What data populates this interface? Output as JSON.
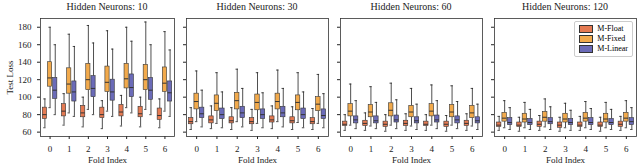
{
  "chart_data": [
    {
      "type": "box",
      "title": "Hidden Neurons: 10",
      "xlabel": "Fold Index",
      "ylabel": "Test Loss",
      "categories": [
        "0",
        "1",
        "2",
        "3",
        "4",
        "5",
        "6"
      ],
      "ylim": [
        55,
        190
      ],
      "yticks": [
        60,
        80,
        100,
        120,
        140,
        160,
        180
      ],
      "grid": false,
      "series": [
        {
          "name": "M-Float",
          "color": "#e57a52",
          "values": [
            {
              "min": 65,
              "q1": 75,
              "median": 80,
              "q3": 88,
              "max": 98
            },
            {
              "min": 68,
              "q1": 78,
              "median": 84,
              "q3": 92,
              "max": 104
            },
            {
              "min": 66,
              "q1": 77,
              "median": 82,
              "q3": 90,
              "max": 100
            },
            {
              "min": 64,
              "q1": 76,
              "median": 80,
              "q3": 88,
              "max": 96
            },
            {
              "min": 67,
              "q1": 78,
              "median": 83,
              "q3": 91,
              "max": 102
            },
            {
              "min": 66,
              "q1": 77,
              "median": 81,
              "q3": 89,
              "max": 100
            },
            {
              "min": 65,
              "q1": 74,
              "median": 79,
              "q3": 87,
              "max": 98
            }
          ]
        },
        {
          "name": "M-Fixed",
          "color": "#f2aa4c",
          "values": [
            {
              "min": 88,
              "q1": 112,
              "median": 122,
              "q3": 140,
              "max": 180
            },
            {
              "min": 82,
              "q1": 104,
              "median": 115,
              "q3": 133,
              "max": 172
            },
            {
              "min": 86,
              "q1": 108,
              "median": 120,
              "q3": 138,
              "max": 182
            },
            {
              "min": 84,
              "q1": 106,
              "median": 117,
              "q3": 135,
              "max": 176
            },
            {
              "min": 88,
              "q1": 110,
              "median": 121,
              "q3": 138,
              "max": 180
            },
            {
              "min": 86,
              "q1": 108,
              "median": 120,
              "q3": 137,
              "max": 186
            },
            {
              "min": 84,
              "q1": 106,
              "median": 116,
              "q3": 134,
              "max": 175
            }
          ]
        },
        {
          "name": "M-Linear",
          "color": "#6b6bb8",
          "values": [
            {
              "min": 80,
              "q1": 98,
              "median": 108,
              "q3": 122,
              "max": 160
            },
            {
              "min": 78,
              "q1": 95,
              "median": 106,
              "q3": 118,
              "max": 158
            },
            {
              "min": 80,
              "q1": 100,
              "median": 110,
              "q3": 124,
              "max": 162
            },
            {
              "min": 78,
              "q1": 96,
              "median": 106,
              "q3": 120,
              "max": 155
            },
            {
              "min": 82,
              "q1": 100,
              "median": 111,
              "q3": 126,
              "max": 164
            },
            {
              "min": 80,
              "q1": 97,
              "median": 108,
              "q3": 122,
              "max": 160
            },
            {
              "min": 78,
              "q1": 95,
              "median": 105,
              "q3": 118,
              "max": 154
            }
          ]
        }
      ]
    },
    {
      "type": "box",
      "title": "Hidden Neurons: 30",
      "xlabel": "Fold Index",
      "categories": [
        "0",
        "1",
        "2",
        "3",
        "4",
        "5",
        "6"
      ],
      "ylim": [
        55,
        190
      ],
      "yticks": [
        60,
        80,
        100,
        120,
        140,
        160,
        180
      ],
      "grid": false,
      "tick_labels": "x",
      "series": [
        {
          "name": "M-Float",
          "color": "#e57a52",
          "values": [
            {
              "min": 63,
              "q1": 69,
              "median": 72,
              "q3": 76,
              "max": 88
            },
            {
              "min": 64,
              "q1": 70,
              "median": 74,
              "q3": 78,
              "max": 90
            },
            {
              "min": 63,
              "q1": 70,
              "median": 73,
              "q3": 77,
              "max": 88
            },
            {
              "min": 62,
              "q1": 69,
              "median": 72,
              "q3": 76,
              "max": 86
            },
            {
              "min": 64,
              "q1": 71,
              "median": 74,
              "q3": 78,
              "max": 90
            },
            {
              "min": 63,
              "q1": 70,
              "median": 73,
              "q3": 77,
              "max": 89
            },
            {
              "min": 63,
              "q1": 69,
              "median": 72,
              "q3": 76,
              "max": 87
            }
          ]
        },
        {
          "name": "M-Fixed",
          "color": "#f2aa4c",
          "values": [
            {
              "min": 72,
              "q1": 86,
              "median": 95,
              "q3": 104,
              "max": 130
            },
            {
              "min": 70,
              "q1": 84,
              "median": 93,
              "q3": 102,
              "max": 128
            },
            {
              "min": 72,
              "q1": 86,
              "median": 96,
              "q3": 105,
              "max": 132
            },
            {
              "min": 70,
              "q1": 85,
              "median": 94,
              "q3": 103,
              "max": 128
            },
            {
              "min": 72,
              "q1": 86,
              "median": 95,
              "q3": 104,
              "max": 131
            },
            {
              "min": 71,
              "q1": 85,
              "median": 94,
              "q3": 102,
              "max": 128
            },
            {
              "min": 70,
              "q1": 84,
              "median": 92,
              "q3": 100,
              "max": 126
            }
          ]
        },
        {
          "name": "M-Linear",
          "color": "#6b6bb8",
          "values": [
            {
              "min": 66,
              "q1": 76,
              "median": 81,
              "q3": 88,
              "max": 108
            },
            {
              "min": 65,
              "q1": 75,
              "median": 80,
              "q3": 87,
              "max": 106
            },
            {
              "min": 66,
              "q1": 76,
              "median": 82,
              "q3": 89,
              "max": 110
            },
            {
              "min": 65,
              "q1": 75,
              "median": 80,
              "q3": 86,
              "max": 105
            },
            {
              "min": 66,
              "q1": 77,
              "median": 82,
              "q3": 89,
              "max": 110
            },
            {
              "min": 65,
              "q1": 75,
              "median": 80,
              "q3": 87,
              "max": 106
            },
            {
              "min": 65,
              "q1": 75,
              "median": 79,
              "q3": 86,
              "max": 104
            }
          ]
        }
      ]
    },
    {
      "type": "box",
      "title": "Hidden Neurons: 60",
      "xlabel": "Fold Index",
      "categories": [
        "0",
        "1",
        "2",
        "3",
        "4",
        "5",
        "6"
      ],
      "ylim": [
        55,
        190
      ],
      "yticks": [
        60,
        80,
        100,
        120,
        140,
        160,
        180
      ],
      "grid": false,
      "tick_labels": "x",
      "series": [
        {
          "name": "M-Float",
          "color": "#e57a52",
          "values": [
            {
              "min": 62,
              "q1": 67,
              "median": 69,
              "q3": 72,
              "max": 80
            },
            {
              "min": 62,
              "q1": 67,
              "median": 70,
              "q3": 73,
              "max": 82
            },
            {
              "min": 61,
              "q1": 66,
              "median": 69,
              "q3": 72,
              "max": 80
            },
            {
              "min": 62,
              "q1": 67,
              "median": 70,
              "q3": 73,
              "max": 81
            },
            {
              "min": 62,
              "q1": 67,
              "median": 69,
              "q3": 72,
              "max": 80
            },
            {
              "min": 61,
              "q1": 66,
              "median": 69,
              "q3": 72,
              "max": 79
            },
            {
              "min": 62,
              "q1": 67,
              "median": 70,
              "q3": 73,
              "max": 81
            }
          ]
        },
        {
          "name": "M-Fixed",
          "color": "#f2aa4c",
          "values": [
            {
              "min": 68,
              "q1": 78,
              "median": 84,
              "q3": 92,
              "max": 115
            },
            {
              "min": 67,
              "q1": 77,
              "median": 83,
              "q3": 91,
              "max": 112
            },
            {
              "min": 68,
              "q1": 78,
              "median": 85,
              "q3": 93,
              "max": 116
            },
            {
              "min": 67,
              "q1": 77,
              "median": 83,
              "q3": 90,
              "max": 110
            },
            {
              "min": 68,
              "q1": 78,
              "median": 84,
              "q3": 92,
              "max": 114
            },
            {
              "min": 68,
              "q1": 77,
              "median": 83,
              "q3": 91,
              "max": 113
            },
            {
              "min": 67,
              "q1": 76,
              "median": 82,
              "q3": 90,
              "max": 110
            }
          ]
        },
        {
          "name": "M-Linear",
          "color": "#6b6bb8",
          "values": [
            {
              "min": 64,
              "q1": 70,
              "median": 74,
              "q3": 78,
              "max": 96
            },
            {
              "min": 64,
              "q1": 70,
              "median": 73,
              "q3": 78,
              "max": 94
            },
            {
              "min": 64,
              "q1": 71,
              "median": 74,
              "q3": 79,
              "max": 97
            },
            {
              "min": 63,
              "q1": 70,
              "median": 73,
              "q3": 77,
              "max": 92
            },
            {
              "min": 64,
              "q1": 71,
              "median": 74,
              "q3": 79,
              "max": 96
            },
            {
              "min": 64,
              "q1": 70,
              "median": 74,
              "q3": 78,
              "max": 95
            },
            {
              "min": 63,
              "q1": 70,
              "median": 73,
              "q3": 77,
              "max": 92
            }
          ]
        }
      ]
    },
    {
      "type": "box",
      "title": "Hidden Neurons: 120",
      "xlabel": "Fold Index",
      "categories": [
        "0",
        "1",
        "2",
        "3",
        "4",
        "5",
        "6"
      ],
      "ylim": [
        55,
        190
      ],
      "yticks": [
        60,
        80,
        100,
        120,
        140,
        160,
        180
      ],
      "grid": false,
      "tick_labels": "x",
      "legend": "upper right",
      "series": [
        {
          "name": "M-Float",
          "color": "#e57a52",
          "values": [
            {
              "min": 62,
              "q1": 66,
              "median": 68,
              "q3": 71,
              "max": 78
            },
            {
              "min": 61,
              "q1": 66,
              "median": 68,
              "q3": 71,
              "max": 77
            },
            {
              "min": 62,
              "q1": 66,
              "median": 69,
              "q3": 72,
              "max": 79
            },
            {
              "min": 61,
              "q1": 65,
              "median": 68,
              "q3": 71,
              "max": 77
            },
            {
              "min": 62,
              "q1": 66,
              "median": 68,
              "q3": 71,
              "max": 78
            },
            {
              "min": 61,
              "q1": 66,
              "median": 68,
              "q3": 71,
              "max": 77
            },
            {
              "min": 62,
              "q1": 66,
              "median": 69,
              "q3": 72,
              "max": 78
            }
          ]
        },
        {
          "name": "M-Fixed",
          "color": "#f2aa4c",
          "values": [
            {
              "min": 65,
              "q1": 72,
              "median": 76,
              "q3": 82,
              "max": 96
            },
            {
              "min": 65,
              "q1": 71,
              "median": 75,
              "q3": 81,
              "max": 94
            },
            {
              "min": 66,
              "q1": 72,
              "median": 77,
              "q3": 83,
              "max": 98
            },
            {
              "min": 65,
              "q1": 71,
              "median": 75,
              "q3": 81,
              "max": 93
            },
            {
              "min": 65,
              "q1": 72,
              "median": 76,
              "q3": 82,
              "max": 95
            },
            {
              "min": 65,
              "q1": 71,
              "median": 75,
              "q3": 81,
              "max": 94
            },
            {
              "min": 65,
              "q1": 72,
              "median": 76,
              "q3": 82,
              "max": 96
            }
          ]
        },
        {
          "name": "M-Linear",
          "color": "#6b6bb8",
          "values": [
            {
              "min": 63,
              "q1": 68,
              "median": 71,
              "q3": 76,
              "max": 88
            },
            {
              "min": 63,
              "q1": 68,
              "median": 71,
              "q3": 75,
              "max": 86
            },
            {
              "min": 63,
              "q1": 69,
              "median": 72,
              "q3": 76,
              "max": 89
            },
            {
              "min": 62,
              "q1": 68,
              "median": 71,
              "q3": 75,
              "max": 85
            },
            {
              "min": 63,
              "q1": 68,
              "median": 71,
              "q3": 76,
              "max": 87
            },
            {
              "min": 63,
              "q1": 68,
              "median": 71,
              "q3": 75,
              "max": 86
            },
            {
              "min": 63,
              "q1": 68,
              "median": 72,
              "q3": 76,
              "max": 88
            }
          ]
        }
      ]
    }
  ]
}
